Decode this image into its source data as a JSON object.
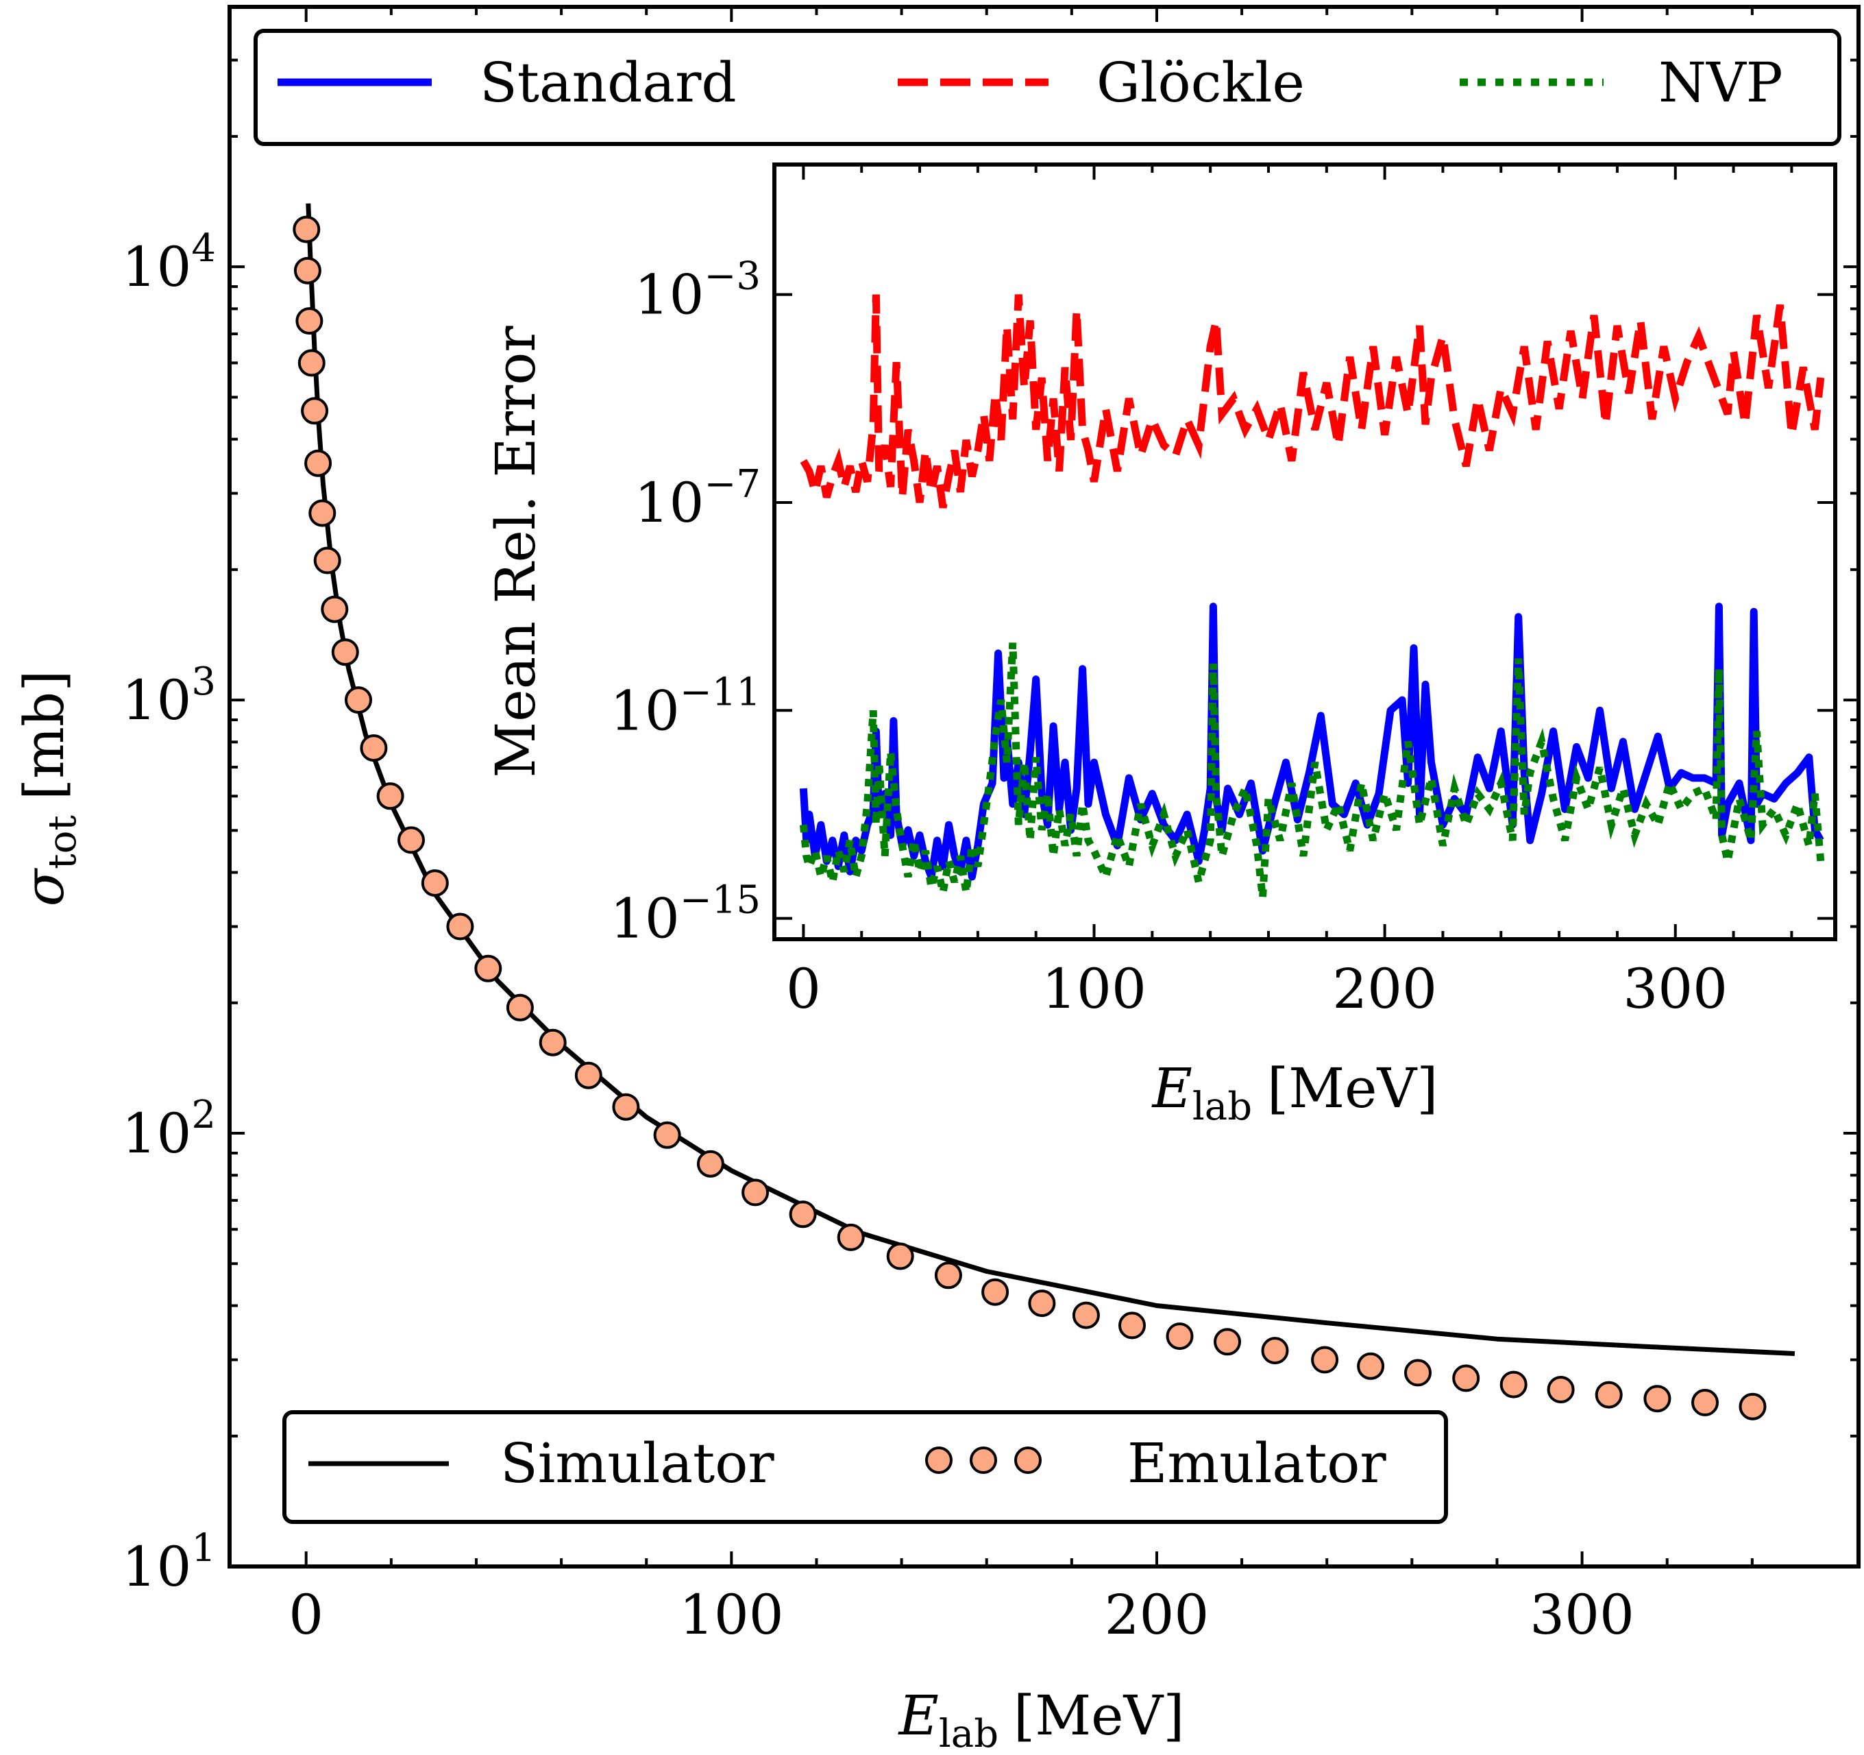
{
  "chart_data": [
    {
      "id": "main",
      "type": "line",
      "title": "",
      "xlabel": "E",
      "xlabel_sub": "lab",
      "xlabel_unit": "[MeV]",
      "ylabel": "σ",
      "ylabel_sub": "tot",
      "ylabel_unit": "[mb]",
      "xlim": [
        -18,
        365
      ],
      "ylim_log10": [
        1,
        4.6
      ],
      "yscale": "log",
      "x_ticks": [
        0,
        100,
        200,
        300
      ],
      "x_tick_labels": [
        "0",
        "100",
        "200",
        "300"
      ],
      "y_ticks_log10": [
        1,
        2,
        3,
        4
      ],
      "y_tick_labels": [
        {
          "base": "10",
          "exp": "1"
        },
        {
          "base": "10",
          "exp": "2"
        },
        {
          "base": "10",
          "exp": "3"
        },
        {
          "base": "10",
          "exp": "4"
        }
      ],
      "legend": {
        "position": "bottom-center",
        "entries": [
          {
            "label": "Simulator",
            "style": "solid-line",
            "color": "#000000"
          },
          {
            "label": "Emulator",
            "style": "markers",
            "color": "#fca882"
          }
        ]
      },
      "series": [
        {
          "name": "Simulator",
          "color": "#000000",
          "x": [
            0.5,
            1,
            2,
            3,
            4,
            6,
            8,
            10,
            14,
            20,
            30,
            45,
            60,
            80,
            100,
            130,
            160,
            200,
            240,
            280,
            320,
            350
          ],
          "y": [
            14000,
            10500,
            6400,
            4300,
            3150,
            2050,
            1500,
            1180,
            830,
            575,
            360,
            225,
            160,
            109,
            82,
            59,
            48,
            40,
            36.5,
            33.5,
            32,
            31
          ]
        },
        {
          "name": "Emulator",
          "color": "#fca882",
          "x": [
            0.1,
            0.35,
            0.75,
            1.3,
            2.0,
            2.8,
            3.8,
            5.0,
            6.7,
            9.2,
            12.3,
            15.9,
            19.8,
            24.7,
            30.3,
            36.2,
            42.8,
            50.3,
            58.0,
            66.4,
            75.2,
            84.9,
            95.1,
            105.6,
            116.8,
            128.1,
            139.7,
            151.0,
            162.0,
            173.0,
            183.4,
            194.2,
            205.4,
            216.6,
            227.8,
            239.5,
            250.3,
            261.4,
            272.7,
            283.9,
            295.0,
            306.3,
            317.7,
            328.9,
            340.1
          ],
          "y": [
            12200,
            9800,
            7500,
            6000,
            4650,
            3520,
            2700,
            2100,
            1620,
            1290,
            1000,
            775,
            600,
            475,
            378,
            300,
            240,
            195,
            162,
            136,
            115,
            99,
            85,
            73,
            65,
            57.5,
            52,
            47,
            43,
            40.5,
            38,
            36,
            34,
            33,
            31.5,
            30,
            29,
            28,
            27.2,
            26.3,
            25.6,
            24.9,
            24.4,
            23.9,
            23.4
          ]
        }
      ]
    },
    {
      "id": "inset",
      "type": "line",
      "title": "",
      "xlabel": "E",
      "xlabel_sub": "lab",
      "xlabel_unit": "[MeV]",
      "ylabel": "Mean Rel. Error",
      "xlim": [
        -10,
        355
      ],
      "ylim_log10": [
        -15.4,
        -0.5
      ],
      "yscale": "log",
      "x_ticks": [
        0,
        100,
        200,
        300
      ],
      "x_tick_labels": [
        "0",
        "100",
        "200",
        "300"
      ],
      "y_ticks_log10": [
        -15,
        -11,
        -7,
        -3
      ],
      "y_tick_labels": [
        {
          "base": "10",
          "exp": "−15"
        },
        {
          "base": "10",
          "exp": "−11"
        },
        {
          "base": "10",
          "exp": "−7"
        },
        {
          "base": "10",
          "exp": "−3"
        }
      ],
      "legend": {
        "position": "top, above inset",
        "entries": [
          {
            "label": "Standard",
            "style": "solid-line",
            "color": "#0000ff"
          },
          {
            "label": "Glöckle",
            "style": "dashed-line",
            "color": "#ff0000"
          },
          {
            "label": "NVP",
            "style": "dotted-line",
            "color": "#008000"
          }
        ]
      },
      "series": [
        {
          "name": "Standard",
          "color": "#0000ff",
          "x": [
            0,
            1,
            2,
            4,
            6,
            8,
            10,
            12,
            14,
            16,
            18,
            20,
            22,
            24,
            25,
            26,
            28,
            30,
            31,
            32,
            34,
            36,
            38,
            40,
            42,
            44,
            46,
            48,
            50,
            52,
            54,
            56,
            58,
            60,
            62,
            65,
            67,
            68,
            69,
            70,
            72,
            74,
            76,
            78,
            80,
            82,
            84,
            86,
            88,
            90,
            92,
            94,
            96,
            98,
            100,
            104,
            108,
            112,
            116,
            120,
            124,
            128,
            132,
            136,
            138,
            140,
            141,
            142,
            144,
            146,
            150,
            154,
            158,
            162,
            166,
            170,
            174,
            178,
            182,
            186,
            190,
            194,
            198,
            202,
            206,
            208,
            210,
            212,
            214,
            216,
            220,
            224,
            228,
            232,
            236,
            240,
            244,
            246,
            248,
            250,
            254,
            258,
            262,
            266,
            270,
            274,
            278,
            282,
            286,
            290,
            294,
            298,
            302,
            306,
            310,
            314,
            315,
            316,
            318,
            322,
            326,
            327,
            328,
            330,
            334,
            338,
            342,
            346,
            348,
            350
          ],
          "y_log10": [
            -12.5,
            -13.5,
            -13.0,
            -13.8,
            -13.2,
            -13.9,
            -13.5,
            -14.0,
            -13.4,
            -14.1,
            -13.5,
            -13.7,
            -13.2,
            -12.9,
            -11.4,
            -13.0,
            -12.6,
            -13.4,
            -11.2,
            -13.0,
            -13.6,
            -13.3,
            -13.8,
            -13.4,
            -13.9,
            -14.2,
            -13.5,
            -14.0,
            -13.2,
            -13.8,
            -14.1,
            -13.5,
            -14.2,
            -13.6,
            -12.8,
            -12.4,
            -9.9,
            -11.0,
            -12.3,
            -11.5,
            -12.8,
            -12.0,
            -13.0,
            -11.8,
            -10.4,
            -12.6,
            -13.2,
            -11.3,
            -12.9,
            -12.0,
            -13.3,
            -12.5,
            -10.2,
            -12.8,
            -12.0,
            -13.0,
            -13.6,
            -12.3,
            -13.1,
            -12.6,
            -13.2,
            -13.5,
            -13.0,
            -13.9,
            -13.3,
            -12.5,
            -9.0,
            -12.7,
            -13.3,
            -12.5,
            -13.0,
            -12.4,
            -13.7,
            -12.8,
            -12.0,
            -13.1,
            -12.2,
            -11.1,
            -12.8,
            -13.0,
            -12.4,
            -13.2,
            -12.6,
            -11.0,
            -10.8,
            -12.4,
            -9.8,
            -13.0,
            -10.5,
            -12.0,
            -13.2,
            -12.7,
            -13.0,
            -11.9,
            -12.5,
            -11.4,
            -13.2,
            -9.2,
            -12.2,
            -13.5,
            -12.6,
            -11.4,
            -12.9,
            -11.7,
            -12.3,
            -11.0,
            -12.5,
            -11.6,
            -12.9,
            -12.2,
            -11.5,
            -12.5,
            -12.2,
            -12.3,
            -12.3,
            -12.4,
            -9.0,
            -13.4,
            -12.8,
            -12.4,
            -13.5,
            -9.1,
            -12.8,
            -12.6,
            -12.7,
            -12.4,
            -12.2,
            -11.9,
            -13.3,
            -13.5
          ]
        },
        {
          "name": "Glöckle",
          "color": "#ff0000",
          "x": [
            0,
            2,
            4,
            6,
            8,
            10,
            12,
            14,
            16,
            18,
            20,
            22,
            24,
            25,
            26,
            28,
            30,
            32,
            34,
            36,
            38,
            40,
            42,
            44,
            46,
            48,
            50,
            52,
            54,
            56,
            58,
            60,
            62,
            64,
            66,
            68,
            70,
            72,
            74,
            76,
            78,
            80,
            82,
            84,
            86,
            88,
            90,
            92,
            94,
            96,
            98,
            100,
            104,
            108,
            112,
            116,
            120,
            124,
            128,
            132,
            136,
            140,
            142,
            144,
            148,
            152,
            156,
            160,
            164,
            168,
            172,
            176,
            180,
            184,
            188,
            192,
            196,
            200,
            204,
            208,
            212,
            214,
            216,
            220,
            224,
            228,
            232,
            236,
            240,
            244,
            248,
            252,
            256,
            260,
            264,
            268,
            272,
            276,
            280,
            284,
            288,
            292,
            296,
            300,
            304,
            308,
            312,
            316,
            318,
            320,
            324,
            328,
            332,
            336,
            340,
            344,
            348,
            350
          ],
          "y_log10": [
            -6.2,
            -6.4,
            -6.8,
            -6.3,
            -6.9,
            -6.5,
            -6.2,
            -6.7,
            -6.3,
            -6.8,
            -6.2,
            -6.6,
            -5.5,
            -3.0,
            -6.4,
            -5.9,
            -6.7,
            -4.3,
            -6.9,
            -5.6,
            -6.2,
            -7.0,
            -6.0,
            -6.8,
            -6.3,
            -7.1,
            -6.5,
            -6.0,
            -6.8,
            -5.8,
            -6.5,
            -6.0,
            -5.3,
            -6.2,
            -4.9,
            -5.8,
            -3.6,
            -5.4,
            -3.0,
            -4.8,
            -3.5,
            -5.6,
            -4.6,
            -6.2,
            -5.0,
            -6.4,
            -4.4,
            -5.8,
            -3.3,
            -5.6,
            -6.0,
            -6.6,
            -5.2,
            -6.4,
            -5.0,
            -6.1,
            -5.4,
            -5.9,
            -6.1,
            -5.4,
            -5.9,
            -4.0,
            -3.5,
            -5.3,
            -5.0,
            -5.6,
            -5.2,
            -5.8,
            -5.1,
            -6.2,
            -4.5,
            -5.6,
            -4.7,
            -5.9,
            -4.2,
            -5.6,
            -4.0,
            -5.7,
            -4.2,
            -5.3,
            -3.6,
            -5.5,
            -4.6,
            -3.8,
            -5.4,
            -6.3,
            -5.0,
            -6.0,
            -4.8,
            -5.3,
            -4.0,
            -5.6,
            -3.9,
            -5.2,
            -3.7,
            -5.0,
            -3.4,
            -5.5,
            -3.6,
            -4.9,
            -3.5,
            -5.4,
            -4.0,
            -5.0,
            -4.3,
            -3.8,
            -4.4,
            -5.0,
            -5.3,
            -4.1,
            -5.5,
            -3.4,
            -4.8,
            -3.2,
            -5.7,
            -4.4,
            -5.6,
            -4.6
          ]
        },
        {
          "name": "NVP",
          "color": "#008000",
          "x": [
            0,
            1,
            2,
            4,
            6,
            8,
            10,
            12,
            14,
            16,
            18,
            20,
            22,
            24,
            25,
            26,
            28,
            30,
            32,
            34,
            36,
            38,
            40,
            42,
            44,
            46,
            48,
            50,
            52,
            54,
            56,
            58,
            60,
            62,
            64,
            66,
            68,
            70,
            72,
            74,
            76,
            78,
            80,
            82,
            84,
            86,
            88,
            90,
            92,
            94,
            96,
            98,
            100,
            104,
            108,
            112,
            116,
            120,
            124,
            128,
            132,
            136,
            140,
            141,
            142,
            144,
            148,
            152,
            156,
            158,
            160,
            164,
            168,
            172,
            176,
            180,
            184,
            188,
            192,
            196,
            200,
            204,
            208,
            212,
            216,
            220,
            224,
            228,
            232,
            236,
            240,
            244,
            246,
            248,
            250,
            254,
            258,
            262,
            266,
            270,
            274,
            278,
            282,
            286,
            290,
            294,
            298,
            302,
            306,
            310,
            314,
            315,
            316,
            318,
            322,
            326,
            328,
            330,
            334,
            338,
            342,
            346,
            348,
            350
          ],
          "y_log10": [
            -13.2,
            -13.8,
            -14.0,
            -13.7,
            -14.2,
            -13.8,
            -14.3,
            -13.7,
            -14.1,
            -13.5,
            -14.2,
            -13.8,
            -12.8,
            -11.0,
            -13.2,
            -12.0,
            -13.8,
            -11.8,
            -12.9,
            -13.6,
            -14.2,
            -13.5,
            -14.1,
            -13.7,
            -14.4,
            -14.0,
            -14.5,
            -13.9,
            -14.3,
            -13.8,
            -14.5,
            -13.6,
            -14.0,
            -13.2,
            -12.4,
            -11.5,
            -10.8,
            -12.0,
            -9.7,
            -13.2,
            -12.0,
            -13.5,
            -11.9,
            -13.3,
            -12.6,
            -13.8,
            -12.9,
            -13.6,
            -13.0,
            -13.8,
            -12.8,
            -13.5,
            -13.7,
            -14.2,
            -13.4,
            -14.0,
            -12.8,
            -13.6,
            -13.0,
            -13.8,
            -13.3,
            -14.3,
            -13.5,
            -10.1,
            -12.6,
            -13.8,
            -13.0,
            -12.5,
            -13.6,
            -14.6,
            -12.7,
            -13.5,
            -12.4,
            -13.8,
            -12.0,
            -13.3,
            -12.8,
            -13.7,
            -12.4,
            -13.5,
            -12.6,
            -13.3,
            -11.6,
            -13.2,
            -12.3,
            -13.6,
            -12.5,
            -13.2,
            -12.6,
            -12.9,
            -12.4,
            -13.5,
            -10.0,
            -13.0,
            -12.2,
            -11.6,
            -12.7,
            -13.5,
            -12.3,
            -12.9,
            -12.1,
            -13.2,
            -12.5,
            -13.4,
            -12.8,
            -13.2,
            -12.4,
            -12.9,
            -12.6,
            -12.5,
            -13.1,
            -10.2,
            -13.4,
            -13.9,
            -12.7,
            -13.5,
            -11.4,
            -13.2,
            -12.9,
            -13.4,
            -12.8,
            -13.6,
            -12.6,
            -13.9
          ]
        }
      ]
    }
  ]
}
